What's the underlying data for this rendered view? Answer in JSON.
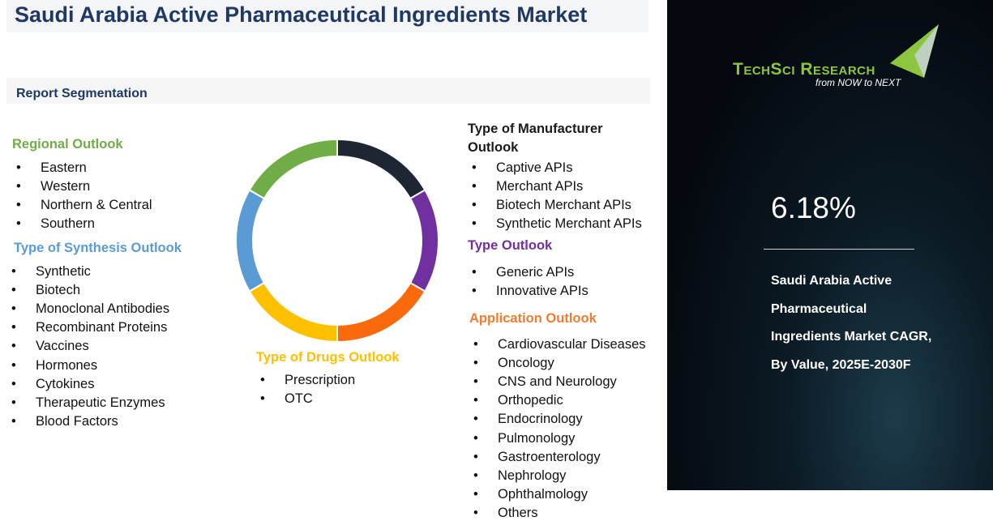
{
  "header": {
    "title": "Saudi Arabia Active Pharmaceutical Ingredients Market"
  },
  "segmentation_label": "Report Segmentation",
  "sections": [
    {
      "title": "Regional Outlook",
      "items": [
        "Eastern",
        "Western",
        "Northern & Central",
        "Southern"
      ]
    },
    {
      "title": "Type of Synthesis Outlook",
      "items": [
        "Synthetic",
        "Biotech",
        "Monoclonal Antibodies",
        "Recombinant Proteins",
        "Vaccines",
        "Hormones",
        "Cytokines",
        "Therapeutic Enzymes",
        "Blood Factors"
      ]
    },
    {
      "title": "Type of Drugs Outlook",
      "items": [
        "Prescription",
        "OTC"
      ]
    },
    {
      "title": "Type of Manufacturer Outlook",
      "items": [
        "Captive APIs",
        "Merchant APIs",
        "Biotech Merchant APIs",
        "Synthetic Merchant APIs"
      ]
    },
    {
      "title": "Type Outlook",
      "items": [
        "Generic APIs",
        "Innovative APIs"
      ]
    },
    {
      "title": "Application Outlook",
      "items": [
        "Cardiovascular Diseases",
        "Oncology",
        "CNS and Neurology",
        "Orthopedic",
        "Endocrinology",
        "Pulmonology",
        "Gastroenterology",
        "Nephrology",
        "Ophthalmology",
        "Others"
      ]
    }
  ],
  "brand": {
    "name": "TechSci Research",
    "tagline": "from NOW to NEXT"
  },
  "stat": {
    "value": "6.18%",
    "caption": "Saudi Arabia Active Pharmaceutical Ingredients Market CAGR, By Value, 2025E-2030F"
  }
}
